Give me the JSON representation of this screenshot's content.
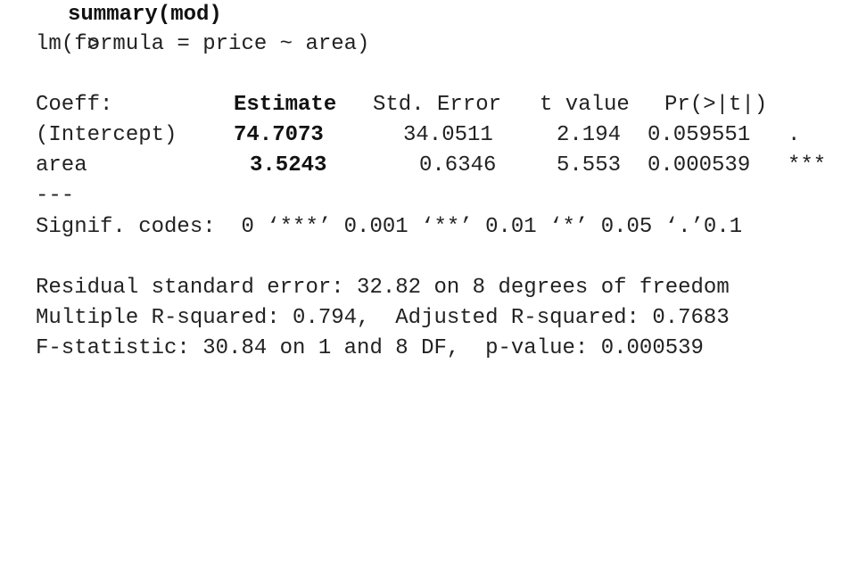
{
  "console": {
    "prompt_symbol": ">",
    "command": "summary(mod)",
    "call": "lm(formula = price ~ area)",
    "coefficients": {
      "headers": {
        "term": "Coeff:",
        "estimate": "Estimate",
        "std_error": "Std. Error",
        "t_value": "t value",
        "p_value": "Pr(>|t|)"
      },
      "rows": [
        {
          "term": "(Intercept)",
          "estimate": "74.7073",
          "std_error": "34.0511",
          "t_value": "2.194",
          "p_value": "0.059551",
          "stars": "."
        },
        {
          "term": "area",
          "estimate": "3.5243",
          "std_error": "0.6346",
          "t_value": "5.553",
          "p_value": "0.000539",
          "stars": "***"
        }
      ]
    },
    "separator": "---",
    "signif_codes": "Signif. codes:  0 ‘***’ 0.001 ‘**’ 0.01 ‘*’ 0.05 ‘.’0.1",
    "residual_line": "Residual standard error: 32.82 on 8 degrees of freedom",
    "rsquared_line": "Multiple R-squared: 0.794,  Adjusted R-squared: 0.7683",
    "fstat_line": "F-statistic: 30.84 on 1 and 8 DF,  p-value: 0.000539"
  }
}
